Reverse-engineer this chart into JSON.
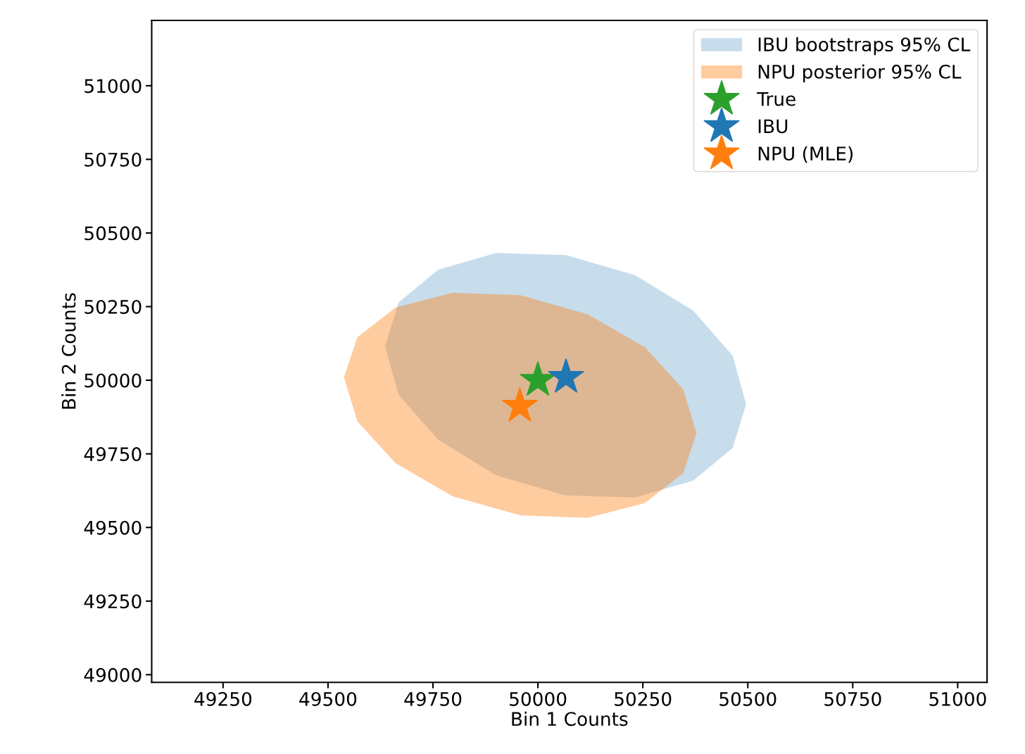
{
  "chart_data": {
    "type": "scatter",
    "xlabel": "Bin 1 Counts",
    "ylabel": "Bin 2 Counts",
    "xlim": [
      49080,
      51070
    ],
    "ylim": [
      48974,
      51222
    ],
    "xticks": [
      49250,
      49500,
      49750,
      50000,
      50250,
      50500,
      50750,
      51000
    ],
    "yticks": [
      49000,
      49250,
      49500,
      49750,
      50000,
      50250,
      50500,
      50750,
      51000
    ],
    "grid": false,
    "legend": "top right",
    "series": [
      {
        "name": "IBU bootstraps 95% CL",
        "type": "area",
        "color": "#1f77b4",
        "x": [
          50496,
          50464,
          50370,
          50231,
          50066,
          49901,
          49762,
          49668,
          49636,
          49668,
          49762,
          49901,
          50066,
          50231,
          50370,
          50464
        ],
        "values": [
          49919,
          49770,
          49659,
          49602,
          49609,
          49677,
          49798,
          49951,
          50115,
          50264,
          50375,
          50432,
          50425,
          50357,
          50236,
          50083
        ]
      },
      {
        "name": "NPU posterior 95% CL",
        "type": "area",
        "color": "#ff7f0e",
        "x": [
          50378,
          50346,
          50255,
          50119,
          49958,
          49797,
          49661,
          49570,
          49538,
          49570,
          49661,
          49797,
          49958,
          50119,
          50255,
          50346
        ],
        "values": [
          49820,
          49684,
          49583,
          49533,
          49541,
          49606,
          49718,
          49860,
          50010,
          50146,
          50247,
          50297,
          50289,
          50224,
          50112,
          49970
        ]
      },
      {
        "name": "True",
        "marker": "star",
        "color": "#2ca02c",
        "x": [
          50000
        ],
        "values": [
          50000
        ]
      },
      {
        "name": "IBU",
        "marker": "star",
        "color": "#1f77b4",
        "x": [
          50067
        ],
        "values": [
          50010
        ]
      },
      {
        "name": "NPU (MLE)",
        "marker": "star",
        "color": "#ff7f0e",
        "x": [
          49957
        ],
        "values": [
          49912
        ]
      }
    ]
  }
}
